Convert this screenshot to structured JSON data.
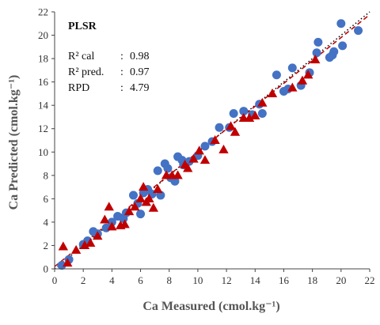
{
  "chart_data": {
    "type": "scatter",
    "title": "PLSR",
    "xlabel": "Ca Measured (cmol.kg⁻¹)",
    "ylabel": "Ca Predicted (cmol.kg⁻¹)",
    "xlim": [
      0,
      22
    ],
    "ylim": [
      0,
      22
    ],
    "xticks": [
      "0",
      "2",
      "4",
      "6",
      "8",
      "10",
      "12",
      "14",
      "16",
      "18",
      "20",
      "22"
    ],
    "yticks": [
      "0",
      "2",
      "4",
      "6",
      "8",
      "10",
      "12",
      "14",
      "16",
      "18",
      "20",
      "22"
    ],
    "grid": false,
    "annotations": [
      {
        "label": "R² cal",
        "sep": ":",
        "value": "0.98"
      },
      {
        "label": "R² pred.",
        "sep": ":",
        "value": "0.97"
      },
      {
        "label": "RPD",
        "sep": ":",
        "value": "4.79"
      }
    ],
    "colors": {
      "calibration": "#4472c4",
      "prediction": "#c00000",
      "line": "#000000",
      "axis": "#444444"
    },
    "series": [
      {
        "marker": "circle",
        "points": [
          [
            0.5,
            0.3
          ],
          [
            1.0,
            0.8
          ],
          [
            2.0,
            2.1
          ],
          [
            2.3,
            2.4
          ],
          [
            2.7,
            3.2
          ],
          [
            3.0,
            3.0
          ],
          [
            3.6,
            3.5
          ],
          [
            4.0,
            4.0
          ],
          [
            4.4,
            4.5
          ],
          [
            4.8,
            4.3
          ],
          [
            5.0,
            4.8
          ],
          [
            5.5,
            6.3
          ],
          [
            5.8,
            5.6
          ],
          [
            6.0,
            4.7
          ],
          [
            6.2,
            6.5
          ],
          [
            6.5,
            6.8
          ],
          [
            6.8,
            6.4
          ],
          [
            7.2,
            8.4
          ],
          [
            7.4,
            6.3
          ],
          [
            7.7,
            9.0
          ],
          [
            7.9,
            8.6
          ],
          [
            8.1,
            7.8
          ],
          [
            8.4,
            7.5
          ],
          [
            8.6,
            9.6
          ],
          [
            8.9,
            9.3
          ],
          [
            9.0,
            8.9
          ],
          [
            9.4,
            9.2
          ],
          [
            10.0,
            9.7
          ],
          [
            10.5,
            10.5
          ],
          [
            11.0,
            10.9
          ],
          [
            11.5,
            12.1
          ],
          [
            12.2,
            12.1
          ],
          [
            12.5,
            13.3
          ],
          [
            13.2,
            13.5
          ],
          [
            13.8,
            13.2
          ],
          [
            14.3,
            14.1
          ],
          [
            14.5,
            13.3
          ],
          [
            15.5,
            16.6
          ],
          [
            16.0,
            15.2
          ],
          [
            16.3,
            15.4
          ],
          [
            16.6,
            17.2
          ],
          [
            17.2,
            15.7
          ],
          [
            17.8,
            16.8
          ],
          [
            18.3,
            18.5
          ],
          [
            18.4,
            19.4
          ],
          [
            19.2,
            18.1
          ],
          [
            19.5,
            18.6
          ],
          [
            20.1,
            19.1
          ],
          [
            20.0,
            21.0
          ],
          [
            21.2,
            20.4
          ],
          [
            19.4,
            18.3
          ]
        ]
      },
      {
        "marker": "triangle",
        "points": [
          [
            0.6,
            1.9
          ],
          [
            0.9,
            0.5
          ],
          [
            1.5,
            1.6
          ],
          [
            2.1,
            2.0
          ],
          [
            2.5,
            2.2
          ],
          [
            3.0,
            2.8
          ],
          [
            3.5,
            4.2
          ],
          [
            3.8,
            5.3
          ],
          [
            4.0,
            3.6
          ],
          [
            4.6,
            3.7
          ],
          [
            4.9,
            3.8
          ],
          [
            5.2,
            4.9
          ],
          [
            5.6,
            5.3
          ],
          [
            6.0,
            6.0
          ],
          [
            6.2,
            7.0
          ],
          [
            6.4,
            5.7
          ],
          [
            6.6,
            6.0
          ],
          [
            6.9,
            5.2
          ],
          [
            7.2,
            6.8
          ],
          [
            7.8,
            8.0
          ],
          [
            8.2,
            8.0
          ],
          [
            8.6,
            8.0
          ],
          [
            9.1,
            8.9
          ],
          [
            9.3,
            8.6
          ],
          [
            9.7,
            9.4
          ],
          [
            10.1,
            10.1
          ],
          [
            10.5,
            9.3
          ],
          [
            11.2,
            11.0
          ],
          [
            11.8,
            10.2
          ],
          [
            12.3,
            12.2
          ],
          [
            12.6,
            11.7
          ],
          [
            13.2,
            12.9
          ],
          [
            13.6,
            12.9
          ],
          [
            14.0,
            13.1
          ],
          [
            14.5,
            14.2
          ],
          [
            15.2,
            15.0
          ],
          [
            16.6,
            15.5
          ],
          [
            17.3,
            16.1
          ],
          [
            17.7,
            16.6
          ],
          [
            18.2,
            17.9
          ]
        ]
      }
    ],
    "lines": [
      {
        "style": "dotted",
        "color": "#000000",
        "slope": 1.0,
        "intercept": 0.0
      },
      {
        "style": "dashed",
        "color": "#c00000",
        "slope": 0.98,
        "intercept": 0.2
      }
    ]
  }
}
